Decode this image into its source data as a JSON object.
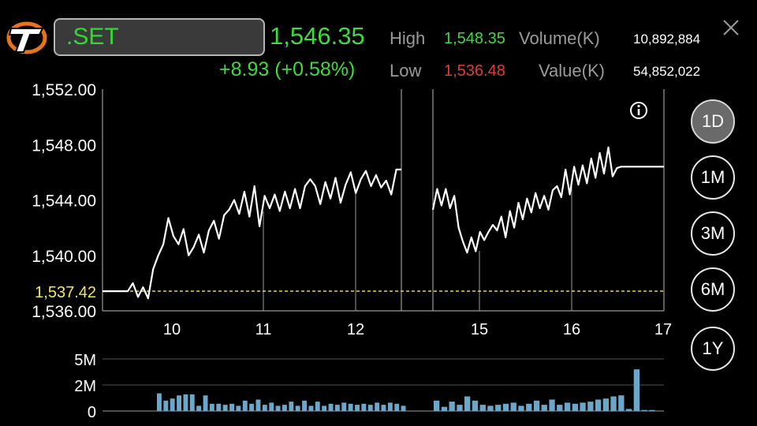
{
  "header": {
    "symbol": ".SET",
    "price": "1,546.35",
    "change": "+8.93 (+0.58%)",
    "high_label": "High",
    "high_value": "1,548.35",
    "low_label": "Low",
    "low_value": "1,536.48",
    "volume_label": "Volume(K)",
    "volume_value": "10,892,884",
    "value_label": "Value(K)",
    "value_value": "54,852,022",
    "close_icon": "close-icon",
    "logo_icon": "exchange-logo-icon"
  },
  "colors": {
    "up": "#3ddc3d",
    "down": "#e23a3a",
    "reference": "#f2e85a",
    "volume_bar": "#6aa7c9"
  },
  "ranges": [
    "1D",
    "1M",
    "3M",
    "6M",
    "1Y"
  ],
  "active_range": "1D",
  "info_icon": "info-icon",
  "chart_data": {
    "type": "line",
    "ylim": [
      1536,
      1552
    ],
    "yticks": [
      "1,552.00",
      "1,548.00",
      "1,544.00",
      "1,540.00",
      "1,536.00"
    ],
    "xticks": [
      "10",
      "11",
      "12",
      "15",
      "16",
      "17"
    ],
    "reference_value": 1537.42,
    "reference_label": "1,537.42",
    "session1_price": [
      1537.42,
      1537.42,
      1537.42,
      1537.42,
      1537.42,
      1537.42,
      1538.0,
      1537.0,
      1537.7,
      1536.9,
      1539.0,
      1540.0,
      1540.8,
      1542.7,
      1541.4,
      1540.8,
      1541.9,
      1540.0,
      1540.6,
      1541.5,
      1540.2,
      1541.8,
      1542.5,
      1541.2,
      1542.9,
      1543.3,
      1544.0,
      1543.0,
      1544.6,
      1542.8,
      1545.0,
      1542.1,
      1544.3,
      1543.4,
      1544.4,
      1543.2,
      1544.6,
      1543.4,
      1544.8,
      1543.4,
      1545.0,
      1545.5,
      1545.0,
      1543.7,
      1545.3,
      1544.1,
      1545.6,
      1543.8,
      1545.1,
      1546.0,
      1544.5,
      1545.5,
      1546.1,
      1545.0,
      1545.8,
      1544.9,
      1545.4,
      1544.4,
      1546.2,
      1546.2
    ],
    "session2_price": [
      1543.3,
      1544.8,
      1543.6,
      1544.8,
      1543.4,
      1544.3,
      1542.0,
      1541.0,
      1540.2,
      1541.3,
      1540.3,
      1541.7,
      1541.1,
      1541.7,
      1542.2,
      1541.8,
      1542.8,
      1541.3,
      1543.2,
      1542.0,
      1543.8,
      1542.6,
      1544.1,
      1543.1,
      1544.5,
      1543.4,
      1544.3,
      1543.3,
      1544.7,
      1545.0,
      1544.2,
      1546.2,
      1544.4,
      1546.4,
      1545.1,
      1546.5,
      1545.2,
      1547.0,
      1545.6,
      1547.4,
      1545.9,
      1547.8,
      1545.7,
      1546.3,
      1546.4,
      1546.4,
      1546.4,
      1546.4,
      1546.4,
      1546.4,
      1546.4,
      1546.4,
      1546.4,
      1546.4,
      1546.4
    ],
    "volume_yticks": [
      "5M",
      "2M",
      "0"
    ],
    "volume_ylim": [
      0,
      5
    ],
    "volume_session1": [
      1.7,
      1.0,
      1.2,
      1.5,
      1.6,
      1.6,
      0.5,
      1.5,
      0.7,
      0.7,
      0.6,
      0.7,
      0.5,
      1.0,
      0.7,
      1.1,
      0.6,
      0.8,
      0.5,
      0.6,
      0.9,
      0.5,
      1.0,
      0.5,
      0.9,
      0.5,
      0.7,
      0.6,
      0.8,
      0.7,
      0.6,
      0.7,
      0.6,
      0.8,
      0.6,
      0.8,
      0.7,
      0.5
    ],
    "volume_session2": [
      1.0,
      0.4,
      0.9,
      0.6,
      1.4,
      1.0,
      0.6,
      0.5,
      0.6,
      0.7,
      0.8,
      0.5,
      0.7,
      1.0,
      0.6,
      1.1,
      0.6,
      0.8,
      0.7,
      0.8,
      0.9,
      1.1,
      1.2,
      1.4,
      1.5,
      0.2,
      4.0,
      0.1,
      0.1
    ]
  }
}
